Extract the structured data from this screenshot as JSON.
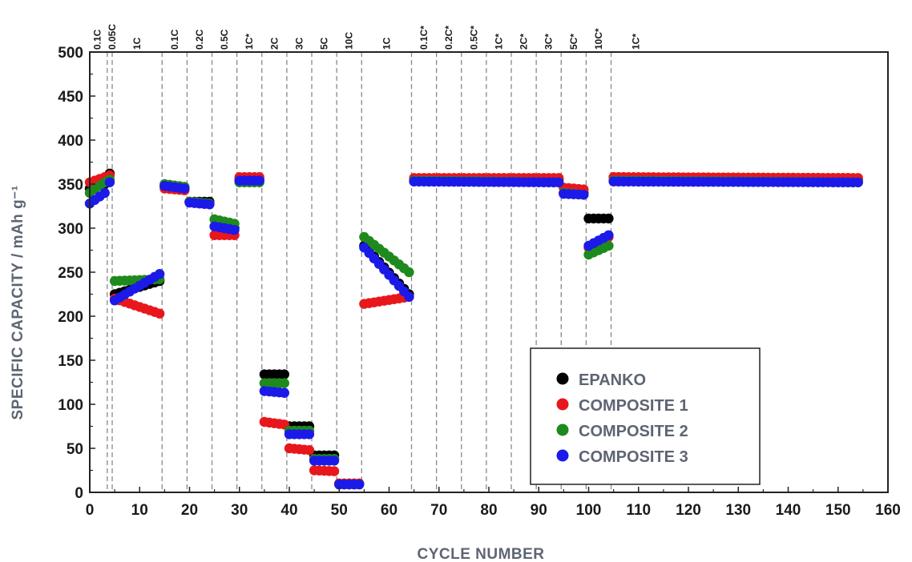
{
  "chart_data": {
    "type": "scatter",
    "title": "",
    "xlabel": "CYCLE NUMBER",
    "ylabel": "SPECIFIC CAPACITY / mAh g⁻¹",
    "xlim": [
      0,
      160
    ],
    "ylim": [
      0,
      500
    ],
    "x_ticks": [
      "0",
      "10",
      "20",
      "30",
      "40",
      "50",
      "60",
      "70",
      "80",
      "90",
      "100",
      "110",
      "120",
      "130",
      "140",
      "150",
      "160"
    ],
    "y_ticks": [
      "0",
      "50",
      "100",
      "150",
      "200",
      "250",
      "300",
      "350",
      "400",
      "450",
      "500"
    ],
    "grid": false,
    "legend_position": "bottom-right",
    "rate_steps": [
      {
        "label": "0.1C",
        "x": 1.5
      },
      {
        "label": "0.05C",
        "x": 4.5
      },
      {
        "label": "1C",
        "x": 9.5
      },
      {
        "label": "0.1C",
        "x": 17
      },
      {
        "label": "0.2C",
        "x": 22
      },
      {
        "label": "0.5C",
        "x": 27
      },
      {
        "label": "1C*",
        "x": 32
      },
      {
        "label": "2C",
        "x": 37
      },
      {
        "label": "3C",
        "x": 42
      },
      {
        "label": "5C",
        "x": 47
      },
      {
        "label": "10C",
        "x": 52
      },
      {
        "label": "1C",
        "x": 59.5
      },
      {
        "label": "0.1C*",
        "x": 67
      },
      {
        "label": "0.2C*",
        "x": 72
      },
      {
        "label": "0.5C*",
        "x": 77
      },
      {
        "label": "1C*",
        "x": 82
      },
      {
        "label": "2C*",
        "x": 87
      },
      {
        "label": "3C*",
        "x": 92
      },
      {
        "label": "5C*",
        "x": 97
      },
      {
        "label": "10C*",
        "x": 102
      },
      {
        "label": "1C*",
        "x": 109.5
      }
    ],
    "boundaries": [
      3.5,
      4.5,
      14.5,
      19.5,
      24.5,
      29.5,
      34.5,
      39.5,
      44.5,
      49.5,
      54.5,
      64.5,
      69.5,
      74.5,
      79.5,
      84.5,
      89.5,
      94.5,
      99.5,
      104.5
    ],
    "series": [
      {
        "name": "EPANKO",
        "color": "#000000",
        "segments": [
          {
            "x0": 0,
            "x1": 3,
            "y0": 345,
            "y1": 350
          },
          {
            "x0": 4,
            "x1": 4,
            "y0": 362,
            "y1": 362
          },
          {
            "x0": 5,
            "x1": 14,
            "y0": 225,
            "y1": 240
          },
          {
            "x0": 15,
            "x1": 19,
            "y0": 348,
            "y1": 346
          },
          {
            "x0": 20,
            "x1": 24,
            "y0": 330,
            "y1": 330
          },
          {
            "x0": 25,
            "x1": 29,
            "y0": 302,
            "y1": 300
          },
          {
            "x0": 30,
            "x1": 34,
            "y0": 355,
            "y1": 355
          },
          {
            "x0": 35,
            "x1": 39,
            "y0": 134,
            "y1": 134
          },
          {
            "x0": 40,
            "x1": 44,
            "y0": 75,
            "y1": 75
          },
          {
            "x0": 45,
            "x1": 49,
            "y0": 42,
            "y1": 42
          },
          {
            "x0": 50,
            "x1": 54,
            "y0": 10,
            "y1": 10
          },
          {
            "x0": 55,
            "x1": 64,
            "y0": 280,
            "y1": 225
          },
          {
            "x0": 65,
            "x1": 94,
            "y0": 355,
            "y1": 355
          },
          {
            "x0": 95,
            "x1": 99,
            "y0": 340,
            "y1": 340
          },
          {
            "x0": 100,
            "x1": 104,
            "y0": 311,
            "y1": 311
          },
          {
            "x0": 105,
            "x1": 154,
            "y0": 358,
            "y1": 355
          }
        ]
      },
      {
        "name": "COMPOSITE 1",
        "color": "#e8171b",
        "segments": [
          {
            "x0": 0,
            "x1": 3,
            "y0": 352,
            "y1": 358
          },
          {
            "x0": 4,
            "x1": 4,
            "y0": 360,
            "y1": 360
          },
          {
            "x0": 5,
            "x1": 14,
            "y0": 220,
            "y1": 203
          },
          {
            "x0": 15,
            "x1": 19,
            "y0": 345,
            "y1": 343
          },
          {
            "x0": 20,
            "x1": 24,
            "y0": 330,
            "y1": 328
          },
          {
            "x0": 25,
            "x1": 29,
            "y0": 292,
            "y1": 292
          },
          {
            "x0": 30,
            "x1": 34,
            "y0": 358,
            "y1": 358
          },
          {
            "x0": 35,
            "x1": 39,
            "y0": 80,
            "y1": 77
          },
          {
            "x0": 40,
            "x1": 44,
            "y0": 50,
            "y1": 48
          },
          {
            "x0": 45,
            "x1": 49,
            "y0": 25,
            "y1": 24
          },
          {
            "x0": 50,
            "x1": 54,
            "y0": 10,
            "y1": 10
          },
          {
            "x0": 55,
            "x1": 64,
            "y0": 214,
            "y1": 222
          },
          {
            "x0": 65,
            "x1": 94,
            "y0": 357,
            "y1": 357
          },
          {
            "x0": 95,
            "x1": 99,
            "y0": 346,
            "y1": 344
          },
          {
            "x0": 100,
            "x1": 104,
            "y0": 278,
            "y1": 290
          },
          {
            "x0": 105,
            "x1": 154,
            "y0": 358,
            "y1": 357
          }
        ]
      },
      {
        "name": "COMPOSITE 2",
        "color": "#1e8a1e",
        "segments": [
          {
            "x0": 0,
            "x1": 3,
            "y0": 340,
            "y1": 352
          },
          {
            "x0": 4,
            "x1": 4,
            "y0": 355,
            "y1": 355
          },
          {
            "x0": 5,
            "x1": 14,
            "y0": 240,
            "y1": 242
          },
          {
            "x0": 15,
            "x1": 19,
            "y0": 350,
            "y1": 347
          },
          {
            "x0": 20,
            "x1": 24,
            "y0": 330,
            "y1": 328
          },
          {
            "x0": 25,
            "x1": 29,
            "y0": 310,
            "y1": 305
          },
          {
            "x0": 30,
            "x1": 34,
            "y0": 352,
            "y1": 352
          },
          {
            "x0": 35,
            "x1": 39,
            "y0": 124,
            "y1": 124
          },
          {
            "x0": 40,
            "x1": 44,
            "y0": 70,
            "y1": 70
          },
          {
            "x0": 45,
            "x1": 49,
            "y0": 38,
            "y1": 38
          },
          {
            "x0": 50,
            "x1": 54,
            "y0": 9,
            "y1": 9
          },
          {
            "x0": 55,
            "x1": 64,
            "y0": 290,
            "y1": 250
          },
          {
            "x0": 65,
            "x1": 94,
            "y0": 354,
            "y1": 352
          },
          {
            "x0": 95,
            "x1": 99,
            "y0": 340,
            "y1": 338
          },
          {
            "x0": 100,
            "x1": 104,
            "y0": 270,
            "y1": 280
          },
          {
            "x0": 105,
            "x1": 154,
            "y0": 354,
            "y1": 352
          }
        ]
      },
      {
        "name": "COMPOSITE 3",
        "color": "#1b1ae8",
        "segments": [
          {
            "x0": 0,
            "x1": 3,
            "y0": 328,
            "y1": 340
          },
          {
            "x0": 4,
            "x1": 4,
            "y0": 352,
            "y1": 352
          },
          {
            "x0": 5,
            "x1": 14,
            "y0": 218,
            "y1": 248
          },
          {
            "x0": 15,
            "x1": 19,
            "y0": 348,
            "y1": 345
          },
          {
            "x0": 20,
            "x1": 24,
            "y0": 329,
            "y1": 327
          },
          {
            "x0": 25,
            "x1": 29,
            "y0": 302,
            "y1": 298
          },
          {
            "x0": 30,
            "x1": 34,
            "y0": 354,
            "y1": 354
          },
          {
            "x0": 35,
            "x1": 39,
            "y0": 115,
            "y1": 113
          },
          {
            "x0": 40,
            "x1": 44,
            "y0": 66,
            "y1": 66
          },
          {
            "x0": 45,
            "x1": 49,
            "y0": 36,
            "y1": 36
          },
          {
            "x0": 50,
            "x1": 54,
            "y0": 9,
            "y1": 9
          },
          {
            "x0": 55,
            "x1": 64,
            "y0": 278,
            "y1": 222
          },
          {
            "x0": 65,
            "x1": 94,
            "y0": 353,
            "y1": 352
          },
          {
            "x0": 95,
            "x1": 99,
            "y0": 339,
            "y1": 338
          },
          {
            "x0": 100,
            "x1": 104,
            "y0": 280,
            "y1": 292
          },
          {
            "x0": 105,
            "x1": 154,
            "y0": 353,
            "y1": 352
          }
        ]
      }
    ]
  }
}
